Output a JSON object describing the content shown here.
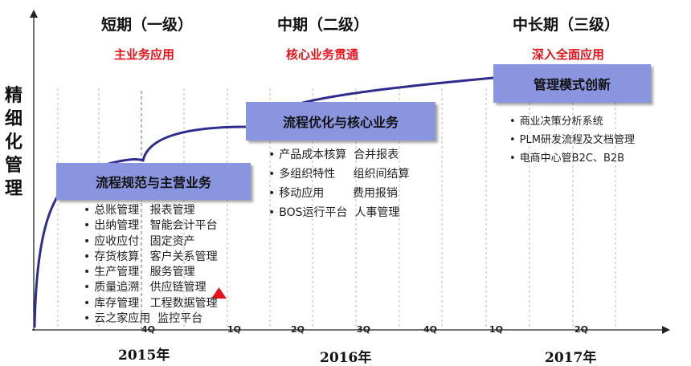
{
  "y_axis_label": "精细化管理",
  "phases": [
    {
      "title": "短期（一级）",
      "subtitle": "主业务应用"
    },
    {
      "title": "中期（二级）",
      "subtitle": "核心业务贯通"
    },
    {
      "title": "中长期（三级）",
      "subtitle": "深入全面应用"
    }
  ],
  "boxes": [
    {
      "label": "流程规范与主营业务"
    },
    {
      "label": "流程优化与核心业务"
    },
    {
      "label": "管理模式创新"
    }
  ],
  "lists": {
    "short": [
      "总账管理   报表管理",
      "出纳管理   智能会计平台",
      "应收应付   固定资产",
      "存货核算   客户关系管理",
      "生产管理   服务管理",
      "质量追溯   供应链管理",
      "库存管理   工程数据管理",
      "云之家应用  监控平台"
    ],
    "mid": [
      "产品成本核算  合并报表",
      "多组织特性     组织间结算",
      "移动应用        费用报销",
      "BOS运行平台  人事管理"
    ],
    "long": [
      "商业决策分析系统",
      "PLM研发流程及文档管理",
      "电商中心管B2C、B2B"
    ]
  },
  "ticks": [
    "4Q",
    "1Q",
    "2Q",
    "3Q",
    "4Q",
    "1Q",
    "2Q"
  ],
  "years": [
    "2015年",
    "2016年",
    "2017年"
  ],
  "colors": {
    "curve": "#2f2b8f",
    "box": "#8a95e0",
    "subtitle": "#e8121b",
    "marker": "#e8121b"
  }
}
